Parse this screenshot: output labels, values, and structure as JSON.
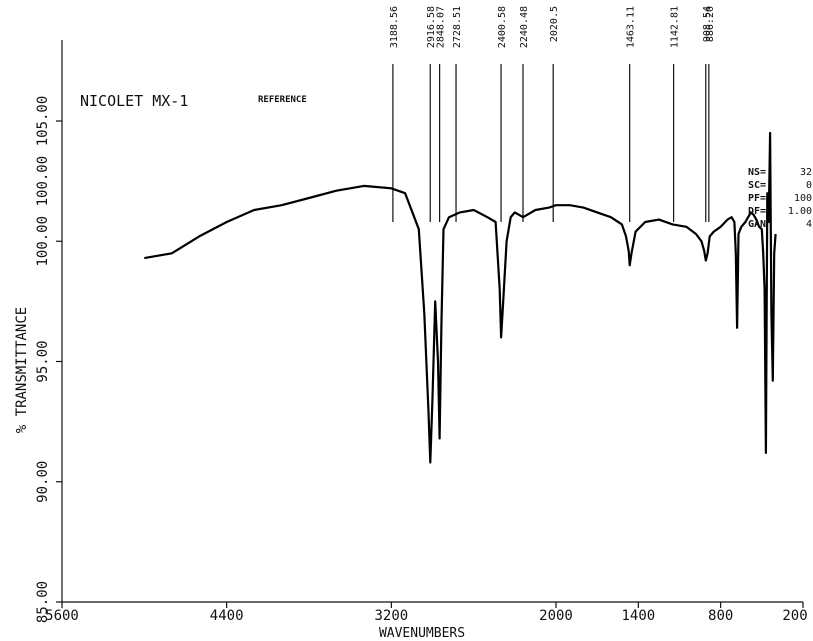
{
  "header": {
    "instrument": "NICOLET MX-1",
    "mode": "REFERENCE"
  },
  "params": [
    {
      "label": "NS=",
      "value": "32"
    },
    {
      "label": "SC=",
      "value": "0"
    },
    {
      "label": "PF=",
      "value": "100"
    },
    {
      "label": "DF=",
      "value": "1.00"
    },
    {
      "label": "GAN",
      "value": "4"
    }
  ],
  "chart_data": {
    "type": "line",
    "xlabel": "WAVENUMBERS",
    "ylabel": "% TRANSMITTANCE",
    "xlim": [
      5600,
      200
    ],
    "ylim": [
      85,
      105
    ],
    "x_ticks": [
      5600,
      4400,
      3200,
      2000,
      1400,
      800,
      200
    ],
    "x_tick_labels": [
      "5600",
      "4400",
      "3200",
      "2000",
      "1400",
      "800",
      "200"
    ],
    "y_ticks": [
      85,
      90,
      95,
      100,
      105
    ],
    "y_tick_labels": [
      "85.00",
      "90.00",
      "95.00",
      "100.00",
      "105.00"
    ],
    "extra_y_labels": [
      {
        "y": 102.5,
        "label": "100.00"
      }
    ],
    "grid": false,
    "peak_labels": [
      {
        "x": 3188.56,
        "label": "3188.56"
      },
      {
        "x": 2916.58,
        "label": "2916.58"
      },
      {
        "x": 2848.07,
        "label": "2848.07"
      },
      {
        "x": 2728.51,
        "label": "2728.51"
      },
      {
        "x": 2400.58,
        "label": "2400.58"
      },
      {
        "x": 2240.48,
        "label": "2240.48"
      },
      {
        "x": 2020.5,
        "label": "2020.5"
      },
      {
        "x": 1463.11,
        "label": "1463.11"
      },
      {
        "x": 1142.81,
        "label": "1142.81"
      },
      {
        "x": 908.54,
        "label": "908.54"
      },
      {
        "x": 886.2,
        "label": "886.20"
      }
    ],
    "series": [
      {
        "x": [
          5000,
          4800,
          4600,
          4400,
          4200,
          4000,
          3800,
          3600,
          3400,
          3200,
          3100,
          3000,
          2960,
          2930,
          2916,
          2900,
          2880,
          2860,
          2848,
          2835,
          2820,
          2780,
          2700,
          2600,
          2500,
          2440,
          2410,
          2400,
          2385,
          2360,
          2330,
          2300,
          2240,
          2150,
          2050,
          2000,
          1900,
          1800,
          1700,
          1600,
          1520,
          1490,
          1470,
          1463,
          1450,
          1420,
          1350,
          1250,
          1150,
          1050,
          980,
          940,
          920,
          908,
          895,
          880,
          850,
          800,
          750,
          720,
          700,
          690,
          680,
          670,
          650,
          620,
          600,
          580,
          560,
          540,
          520,
          500,
          490,
          480,
          470,
          460,
          450,
          440,
          430,
          420,
          410,
          400
        ],
        "y": [
          99.3,
          99.5,
          100.2,
          100.8,
          101.3,
          101.5,
          101.8,
          102.1,
          102.3,
          102.2,
          102.0,
          100.5,
          97.0,
          93.0,
          90.8,
          93.5,
          97.5,
          95.0,
          91.8,
          96.5,
          100.5,
          101.0,
          101.2,
          101.3,
          101.0,
          100.8,
          98.0,
          96.0,
          97.5,
          100.0,
          101.0,
          101.2,
          101.0,
          101.3,
          101.4,
          101.5,
          101.5,
          101.4,
          101.2,
          101.0,
          100.7,
          100.2,
          99.6,
          99.0,
          99.5,
          100.4,
          100.8,
          100.9,
          100.7,
          100.6,
          100.3,
          100.0,
          99.6,
          99.2,
          99.5,
          100.2,
          100.4,
          100.6,
          100.9,
          101.0,
          100.8,
          99.5,
          96.4,
          100.3,
          100.6,
          100.8,
          101.0,
          101.2,
          101.1,
          100.9,
          100.6,
          100.5,
          99.5,
          98.0,
          91.2,
          102.0,
          100.8,
          104.5,
          97.0,
          94.2,
          99.5,
          100.3
        ]
      }
    ]
  }
}
